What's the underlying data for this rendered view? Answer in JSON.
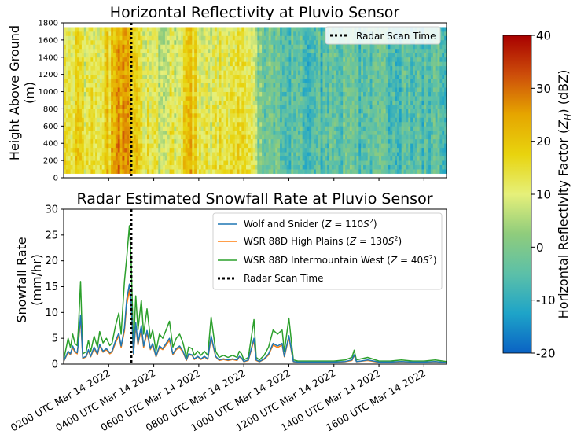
{
  "chart_data": [
    {
      "type": "heatmap",
      "title": "Horizontal Reflectivity at Pluvio Sensor",
      "ylabel": "Height Above Ground\n(m)",
      "ylim": [
        0,
        1800
      ],
      "yticks": [
        0,
        200,
        400,
        600,
        800,
        1000,
        1200,
        1400,
        1600,
        1800
      ],
      "data_range_m": [
        50,
        1750
      ],
      "x_hours_utc": [
        0,
        17
      ],
      "radar_scan_hour_utc": 3.0,
      "legend": [
        "Radar Scan Time"
      ],
      "legend_position": "top-right",
      "colorbar": {
        "label": "Horizontal Reflectivity Factor (Z_H) (dBZ)",
        "vmin": -20,
        "vmax": 40,
        "ticks": [
          -20,
          -10,
          0,
          10,
          20,
          30,
          40
        ],
        "colormap": [
          "#0a62c4",
          "#1ea4c8",
          "#5cc0a8",
          "#8fcc7c",
          "#e6f07a",
          "#e8d40e",
          "#e6a600",
          "#cd4e0a",
          "#a80000"
        ]
      },
      "reflectivity_profile_dbz": [
        {
          "hour": 0,
          "dbz": 12
        },
        {
          "hour": 0.3,
          "dbz": 11
        },
        {
          "hour": 0.6,
          "dbz": 13
        },
        {
          "hour": 1.0,
          "dbz": 10
        },
        {
          "hour": 1.4,
          "dbz": 12
        },
        {
          "hour": 1.8,
          "dbz": 14
        },
        {
          "hour": 2.2,
          "dbz": 18
        },
        {
          "hour": 2.5,
          "dbz": 23
        },
        {
          "hour": 2.8,
          "dbz": 25
        },
        {
          "hour": 3.0,
          "dbz": 21
        },
        {
          "hour": 3.3,
          "dbz": 13
        },
        {
          "hour": 3.8,
          "dbz": 9
        },
        {
          "hour": 4.3,
          "dbz": 7
        },
        {
          "hour": 4.8,
          "dbz": 9
        },
        {
          "hour": 5.2,
          "dbz": 10
        },
        {
          "hour": 5.6,
          "dbz": 19
        },
        {
          "hour": 5.9,
          "dbz": 12
        },
        {
          "hour": 6.3,
          "dbz": 8
        },
        {
          "hour": 6.8,
          "dbz": 10
        },
        {
          "hour": 7.3,
          "dbz": 8
        },
        {
          "hour": 7.8,
          "dbz": 11
        },
        {
          "hour": 8.2,
          "dbz": 12
        },
        {
          "hour": 8.5,
          "dbz": 3
        },
        {
          "hour": 9.0,
          "dbz": -3
        },
        {
          "hour": 10.0,
          "dbz": -5
        },
        {
          "hour": 11.0,
          "dbz": -6
        },
        {
          "hour": 12.0,
          "dbz": -5
        },
        {
          "hour": 12.5,
          "dbz": -2
        },
        {
          "hour": 13.0,
          "dbz": -6
        },
        {
          "hour": 14.0,
          "dbz": -5
        },
        {
          "hour": 15.0,
          "dbz": -6
        },
        {
          "hour": 16.0,
          "dbz": -6
        },
        {
          "hour": 17.0,
          "dbz": -6
        }
      ]
    },
    {
      "type": "line",
      "title": "Radar Estimated Snowfall Rate at Pluvio Sensor",
      "xlabel": "",
      "ylabel": "Snowfall Rate\n(mm/hr)",
      "xlim": [
        0,
        17
      ],
      "ylim": [
        0,
        30
      ],
      "yticks": [
        0,
        5,
        10,
        15,
        20,
        25,
        30
      ],
      "x_tick_hours": [
        2,
        4,
        6,
        8,
        10,
        12,
        14,
        16
      ],
      "x_tick_labels": [
        "0200 UTC Mar 14 2022",
        "0400 UTC Mar 14 2022",
        "0600 UTC Mar 14 2022",
        "0800 UTC Mar 14 2022",
        "1000 UTC Mar 14 2022",
        "1200 UTC Mar 14 2022",
        "1400 UTC Mar 14 2022",
        "1600 UTC Mar 14 2022"
      ],
      "radar_scan_hour_utc": 3.0,
      "legend_position": "top-right",
      "x": [
        0,
        0.2,
        0.3,
        0.4,
        0.5,
        0.6,
        0.65,
        0.75,
        0.85,
        1.0,
        1.1,
        1.2,
        1.35,
        1.5,
        1.6,
        1.75,
        1.9,
        2.05,
        2.15,
        2.3,
        2.45,
        2.55,
        2.7,
        2.8,
        2.92,
        3.0,
        3.1,
        3.2,
        3.3,
        3.45,
        3.55,
        3.7,
        3.85,
        3.95,
        4.1,
        4.25,
        4.4,
        4.55,
        4.7,
        4.85,
        5.0,
        5.15,
        5.3,
        5.45,
        5.55,
        5.7,
        5.8,
        5.95,
        6.1,
        6.25,
        6.4,
        6.55,
        6.75,
        6.9,
        7.1,
        7.3,
        7.5,
        7.7,
        7.8,
        7.9,
        8.0,
        8.2,
        8.45,
        8.55,
        8.7,
        8.9,
        9.1,
        9.3,
        9.5,
        9.7,
        9.8,
        10.0,
        10.2,
        10.4,
        10.6,
        11.0,
        11.5,
        12.0,
        12.5,
        12.8,
        12.9,
        13.0,
        13.2,
        13.5,
        14.0,
        14.5,
        15.0,
        15.5,
        16.0,
        16.5,
        17.0
      ],
      "series": [
        {
          "name": "Wolf and Snider (Z = 110S²)",
          "color": "#1f77b4",
          "values": [
            0.5,
            2.5,
            2.0,
            3.5,
            2.5,
            2.2,
            4.0,
            9.5,
            1.2,
            1.5,
            2.8,
            1.5,
            3.3,
            2.0,
            3.8,
            2.5,
            3.0,
            2.2,
            2.5,
            4.5,
            6.0,
            3.5,
            7.0,
            12.5,
            15.5,
            12.0,
            2.0,
            8.0,
            4.0,
            7.5,
            3.5,
            6.5,
            3.0,
            4.0,
            1.5,
            3.5,
            3.0,
            4.0,
            5.0,
            2.0,
            3.0,
            3.5,
            2.5,
            0.8,
            2.0,
            1.8,
            1.0,
            1.5,
            1.0,
            1.5,
            1.0,
            5.5,
            1.5,
            0.8,
            1.0,
            0.8,
            1.0,
            0.8,
            1.5,
            1.2,
            0.5,
            0.8,
            5.0,
            0.8,
            0.5,
            1.0,
            2.0,
            4.0,
            3.5,
            4.0,
            1.5,
            5.5,
            0.5,
            0.4,
            0.4,
            0.4,
            0.4,
            0.4,
            0.5,
            0.8,
            1.8,
            0.5,
            0.6,
            0.8,
            0.4,
            0.4,
            0.5,
            0.4,
            0.4,
            0.5,
            0.3
          ]
        },
        {
          "name": "WSR 88D High Plains (Z = 130S²)",
          "color": "#ff7f0e",
          "values": [
            0.45,
            2.3,
            1.8,
            3.2,
            2.3,
            2.0,
            3.7,
            8.8,
            1.1,
            1.4,
            2.6,
            1.4,
            3.0,
            1.8,
            3.5,
            2.3,
            2.8,
            2.0,
            2.3,
            4.1,
            5.5,
            3.2,
            6.4,
            11.5,
            14.3,
            11.0,
            1.8,
            7.4,
            3.7,
            6.9,
            3.2,
            6.0,
            2.8,
            3.7,
            1.4,
            3.2,
            2.8,
            3.7,
            4.6,
            1.8,
            2.8,
            3.2,
            2.3,
            0.7,
            1.8,
            1.7,
            0.9,
            1.4,
            0.9,
            1.4,
            0.9,
            5.1,
            1.4,
            0.7,
            0.9,
            0.7,
            0.9,
            0.7,
            1.4,
            1.1,
            0.45,
            0.7,
            4.6,
            0.7,
            0.45,
            0.9,
            1.8,
            3.7,
            3.2,
            3.7,
            1.4,
            5.1,
            0.45,
            0.35,
            0.35,
            0.35,
            0.35,
            0.35,
            0.45,
            0.7,
            1.7,
            0.45,
            0.55,
            0.7,
            0.35,
            0.35,
            0.45,
            0.35,
            0.35,
            0.45,
            0.3
          ]
        },
        {
          "name": "WSR 88D Intermountain West (Z = 40S²)",
          "color": "#2ca02c",
          "values": [
            0.8,
            5.0,
            3.2,
            5.8,
            4.0,
            3.6,
            6.5,
            16.0,
            2.0,
            2.4,
            4.6,
            2.4,
            5.4,
            3.3,
            6.3,
            4.1,
            5.0,
            3.6,
            4.1,
            7.4,
            9.9,
            5.8,
            16.0,
            20.6,
            26.8,
            19.8,
            3.3,
            13.2,
            6.6,
            12.4,
            5.8,
            10.7,
            5.0,
            6.6,
            2.5,
            5.8,
            5.0,
            6.6,
            8.3,
            3.3,
            5.0,
            5.8,
            4.1,
            1.3,
            3.3,
            3.0,
            1.7,
            2.5,
            1.7,
            2.5,
            1.7,
            9.1,
            2.5,
            1.3,
            1.7,
            1.3,
            1.7,
            1.3,
            2.5,
            2.0,
            0.8,
            1.3,
            8.6,
            1.3,
            0.8,
            1.7,
            3.3,
            6.6,
            5.8,
            6.6,
            2.5,
            8.9,
            0.8,
            0.6,
            0.6,
            0.6,
            0.6,
            0.6,
            0.8,
            1.3,
            2.7,
            0.8,
            1.0,
            1.3,
            0.6,
            0.6,
            0.8,
            0.6,
            0.6,
            0.8,
            0.5
          ]
        }
      ],
      "legend": [
        {
          "key": "wolf",
          "label": "Wolf and Snider (Z = 110S²)"
        },
        {
          "key": "highplains",
          "label": "WSR 88D High Plains (Z = 130S²)"
        },
        {
          "key": "intermountain",
          "label": "WSR 88D Intermountain West (Z = 40S²)"
        },
        {
          "key": "scan",
          "label": "Radar Scan Time"
        }
      ]
    }
  ]
}
